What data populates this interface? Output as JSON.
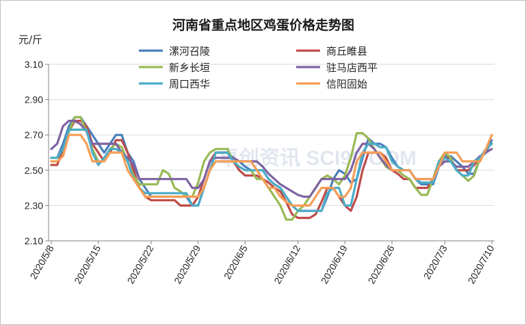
{
  "chart_data": {
    "type": "line",
    "title": "河南省重点地区鸡蛋价格走势图",
    "ylabel": "元/斤",
    "ylim": [
      2.1,
      3.1
    ],
    "yticks": [
      2.1,
      2.3,
      2.5,
      2.7,
      2.9,
      3.1
    ],
    "ytick_labels": [
      "2.10",
      "2.30",
      "2.50",
      "2.70",
      "2.90",
      "3.10"
    ],
    "x_start": "2020/5/8",
    "x_end": "2020/7/10",
    "xtick_labels": [
      "2020/5/8",
      "2020/5/15",
      "2020/5/22",
      "2020/5/29",
      "2020/6/5",
      "2020/6/12",
      "2020/6/19",
      "2020/6/26",
      "2020/7/3",
      "2020/7/10"
    ],
    "grid": "horizontal",
    "legend_position": "top",
    "watermark": "卓创资讯 SCI99.COM",
    "series": [
      {
        "name": "漯河召陵",
        "color": "#4a7ebb",
        "values": [
          2.57,
          2.57,
          2.65,
          2.75,
          2.8,
          2.8,
          2.75,
          2.7,
          2.65,
          2.6,
          2.65,
          2.7,
          2.7,
          2.6,
          2.55,
          2.45,
          2.4,
          2.35,
          2.35,
          2.35,
          2.35,
          2.35,
          2.35,
          2.35,
          2.3,
          2.3,
          2.4,
          2.5,
          2.6,
          2.6,
          2.6,
          2.57,
          2.55,
          2.52,
          2.5,
          2.5,
          2.5,
          2.45,
          2.42,
          2.4,
          2.35,
          2.3,
          2.27,
          2.27,
          2.27,
          2.27,
          2.27,
          2.35,
          2.45,
          2.5,
          2.48,
          2.43,
          2.45,
          2.57,
          2.68,
          2.65,
          2.65,
          2.63,
          2.57,
          2.52,
          2.5,
          2.5,
          2.45,
          2.42,
          2.42,
          2.42,
          2.52,
          2.58,
          2.58,
          2.55,
          2.52,
          2.48,
          2.48,
          2.57,
          2.6,
          2.67
        ]
      },
      {
        "name": "商丘睢县",
        "color": "#be4b48",
        "values": [
          2.53,
          2.53,
          2.62,
          2.72,
          2.78,
          2.78,
          2.75,
          2.65,
          2.6,
          2.55,
          2.6,
          2.67,
          2.67,
          2.6,
          2.5,
          2.4,
          2.35,
          2.33,
          2.33,
          2.33,
          2.33,
          2.33,
          2.3,
          2.3,
          2.3,
          2.35,
          2.45,
          2.55,
          2.6,
          2.6,
          2.6,
          2.55,
          2.5,
          2.47,
          2.47,
          2.47,
          2.45,
          2.43,
          2.4,
          2.38,
          2.32,
          2.25,
          2.23,
          2.23,
          2.23,
          2.25,
          2.32,
          2.4,
          2.4,
          2.35,
          2.3,
          2.27,
          2.35,
          2.5,
          2.6,
          2.6,
          2.6,
          2.57,
          2.5,
          2.48,
          2.45,
          2.45,
          2.4,
          2.4,
          2.4,
          2.45,
          2.55,
          2.57,
          2.57,
          2.5,
          2.5,
          2.5,
          2.53,
          2.57,
          2.62,
          2.65
        ]
      },
      {
        "name": "新乡长垣",
        "color": "#98b954",
        "values": [
          2.57,
          2.57,
          2.62,
          2.72,
          2.8,
          2.8,
          2.72,
          2.62,
          2.55,
          2.55,
          2.62,
          2.65,
          2.63,
          2.55,
          2.47,
          2.42,
          2.42,
          2.42,
          2.42,
          2.5,
          2.48,
          2.4,
          2.38,
          2.35,
          2.35,
          2.43,
          2.55,
          2.6,
          2.62,
          2.62,
          2.62,
          2.55,
          2.52,
          2.5,
          2.5,
          2.45,
          2.45,
          2.4,
          2.35,
          2.3,
          2.22,
          2.22,
          2.27,
          2.3,
          2.35,
          2.4,
          2.45,
          2.47,
          2.45,
          2.42,
          2.47,
          2.57,
          2.71,
          2.71,
          2.68,
          2.62,
          2.57,
          2.52,
          2.5,
          2.5,
          2.47,
          2.45,
          2.4,
          2.36,
          2.36,
          2.45,
          2.55,
          2.6,
          2.57,
          2.5,
          2.47,
          2.44,
          2.47,
          2.57,
          2.62,
          2.65
        ]
      },
      {
        "name": "驻马店西平",
        "color": "#7e62a1",
        "values": [
          2.62,
          2.65,
          2.75,
          2.78,
          2.78,
          2.76,
          2.72,
          2.65,
          2.65,
          2.65,
          2.65,
          2.65,
          2.6,
          2.57,
          2.53,
          2.45,
          2.45,
          2.45,
          2.45,
          2.45,
          2.45,
          2.45,
          2.45,
          2.45,
          2.4,
          2.4,
          2.45,
          2.55,
          2.57,
          2.57,
          2.57,
          2.57,
          2.55,
          2.55,
          2.55,
          2.55,
          2.52,
          2.48,
          2.45,
          2.42,
          2.4,
          2.38,
          2.36,
          2.35,
          2.35,
          2.4,
          2.45,
          2.45,
          2.45,
          2.45,
          2.45,
          2.5,
          2.6,
          2.65,
          2.65,
          2.62,
          2.57,
          2.53,
          2.5,
          2.5,
          2.5,
          2.5,
          2.45,
          2.45,
          2.45,
          2.45,
          2.52,
          2.55,
          2.55,
          2.52,
          2.52,
          2.52,
          2.55,
          2.58,
          2.6,
          2.62
        ]
      },
      {
        "name": "周口西华",
        "color": "#4bacc6",
        "values": [
          2.57,
          2.57,
          2.62,
          2.73,
          2.73,
          2.73,
          2.73,
          2.6,
          2.53,
          2.57,
          2.62,
          2.62,
          2.6,
          2.55,
          2.45,
          2.4,
          2.37,
          2.37,
          2.37,
          2.37,
          2.37,
          2.37,
          2.37,
          2.37,
          2.3,
          2.3,
          2.4,
          2.5,
          2.6,
          2.6,
          2.6,
          2.55,
          2.52,
          2.5,
          2.5,
          2.5,
          2.5,
          2.45,
          2.42,
          2.4,
          2.35,
          2.3,
          2.27,
          2.27,
          2.27,
          2.27,
          2.27,
          2.37,
          2.4,
          2.4,
          2.3,
          2.3,
          2.45,
          2.6,
          2.65,
          2.65,
          2.63,
          2.63,
          2.55,
          2.52,
          2.5,
          2.5,
          2.45,
          2.43,
          2.43,
          2.43,
          2.55,
          2.57,
          2.55,
          2.5,
          2.47,
          2.47,
          2.55,
          2.57,
          2.62,
          2.65
        ]
      },
      {
        "name": "信阳固始",
        "color": "#f59d56",
        "values": [
          2.55,
          2.55,
          2.58,
          2.7,
          2.7,
          2.7,
          2.65,
          2.55,
          2.55,
          2.55,
          2.6,
          2.6,
          2.6,
          2.5,
          2.45,
          2.4,
          2.35,
          2.35,
          2.35,
          2.35,
          2.35,
          2.35,
          2.35,
          2.35,
          2.35,
          2.35,
          2.4,
          2.5,
          2.55,
          2.55,
          2.55,
          2.55,
          2.55,
          2.55,
          2.55,
          2.5,
          2.45,
          2.4,
          2.4,
          2.35,
          2.32,
          2.3,
          2.3,
          2.3,
          2.3,
          2.35,
          2.4,
          2.4,
          2.4,
          2.35,
          2.35,
          2.4,
          2.55,
          2.6,
          2.6,
          2.6,
          2.6,
          2.55,
          2.5,
          2.5,
          2.5,
          2.5,
          2.45,
          2.45,
          2.45,
          2.45,
          2.52,
          2.6,
          2.6,
          2.6,
          2.55,
          2.55,
          2.55,
          2.55,
          2.62,
          2.7
        ]
      }
    ]
  }
}
